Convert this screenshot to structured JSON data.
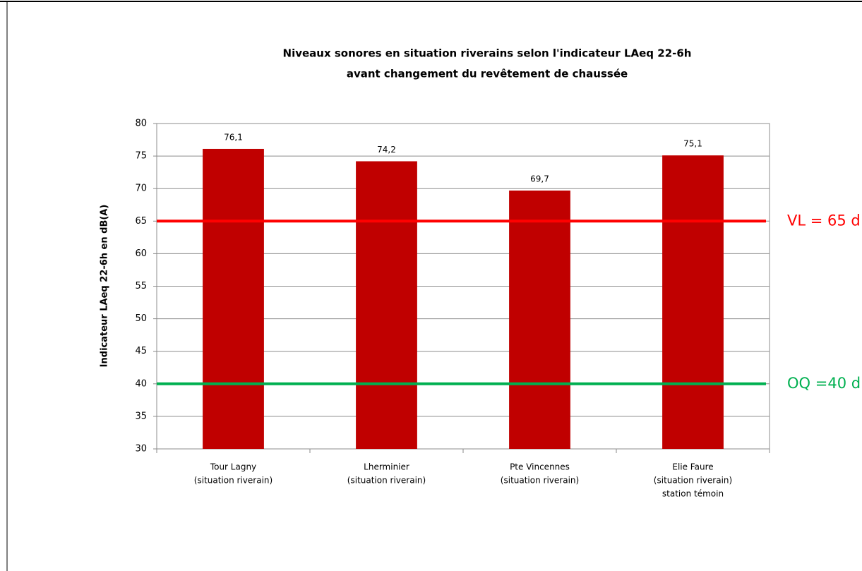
{
  "chart_data": {
    "type": "bar",
    "title": [
      "Niveaux sonores en situation riverains selon l'indicateur LAeq 22-6h",
      "avant changement du revêtement de chaussée"
    ],
    "y_label": "Indicateur LAeq 22-6h en dB(A)",
    "categories": [
      [
        "Tour Lagny",
        "(situation riverain)"
      ],
      [
        "Lherminier",
        "(situation riverain)"
      ],
      [
        "Pte Vincennes",
        "(situation riverain)"
      ],
      [
        "Elie Faure",
        "(situation riverain)",
        "station témoin"
      ]
    ],
    "values": [
      76.1,
      74.2,
      69.7,
      75.1
    ],
    "value_labels": [
      "76,1",
      "74,2",
      "69,7",
      "75,1"
    ],
    "color": "#c00000",
    "ylim": [
      30,
      80
    ],
    "yticks": [
      30,
      35,
      40,
      45,
      50,
      55,
      60,
      65,
      70,
      75,
      80
    ],
    "grid": true,
    "reference_lines": [
      {
        "label": "VL = 65 d",
        "value": 65,
        "color": "#ff0000"
      },
      {
        "label": "OQ =40 d",
        "value": 40,
        "color": "#00b050"
      }
    ]
  }
}
